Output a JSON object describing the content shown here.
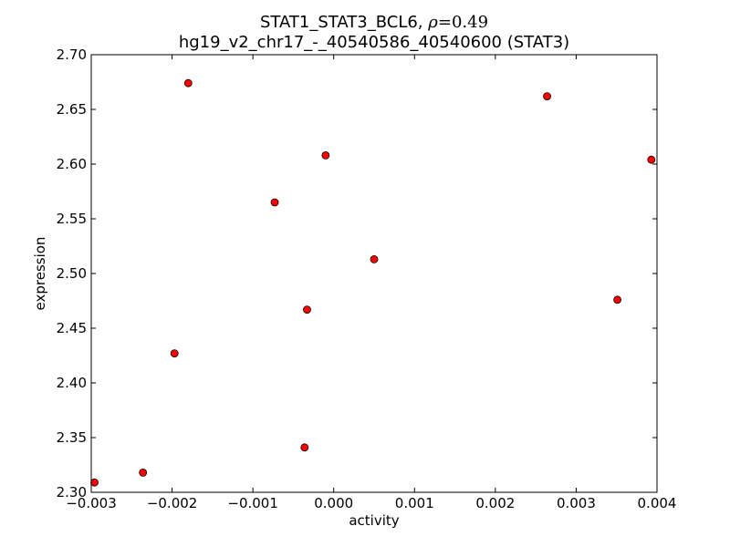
{
  "chart_data": {
    "type": "scatter",
    "title_line1_text": "STAT1_STAT3_BCL6, ",
    "title_rho_symbol": "ρ",
    "title_rho_value": "=0.49",
    "title_line2": "hg19_v2_chr17_-_40540586_40540600 (STAT3)",
    "xlabel": "activity",
    "ylabel": "expression",
    "xlim": [
      -0.003,
      0.004
    ],
    "ylim": [
      2.3,
      2.7
    ],
    "x_ticks": [
      -0.003,
      -0.002,
      -0.001,
      0.0,
      0.001,
      0.002,
      0.003,
      0.004
    ],
    "x_tick_labels": [
      "−0.003",
      "−0.002",
      "−0.001",
      "0.000",
      "0.001",
      "0.002",
      "0.003",
      "0.004"
    ],
    "y_ticks": [
      2.3,
      2.35,
      2.4,
      2.45,
      2.5,
      2.55,
      2.6,
      2.65,
      2.7
    ],
    "y_tick_labels": [
      "2.30",
      "2.35",
      "2.40",
      "2.45",
      "2.50",
      "2.55",
      "2.60",
      "2.65",
      "2.70"
    ],
    "grid": false,
    "marker_color": "#ff0000",
    "marker_edge_color": "#000000",
    "points": [
      {
        "x": -0.00296,
        "y": 2.309
      },
      {
        "x": -0.00236,
        "y": 2.318
      },
      {
        "x": -0.00197,
        "y": 2.427
      },
      {
        "x": -0.0018,
        "y": 2.674
      },
      {
        "x": -0.00073,
        "y": 2.565
      },
      {
        "x": -0.00036,
        "y": 2.341
      },
      {
        "x": -0.00033,
        "y": 2.467
      },
      {
        "x": -0.0001,
        "y": 2.608
      },
      {
        "x": 0.0005,
        "y": 2.513
      },
      {
        "x": 0.00264,
        "y": 2.662
      },
      {
        "x": 0.00351,
        "y": 2.476
      },
      {
        "x": 0.00393,
        "y": 2.604
      }
    ]
  }
}
